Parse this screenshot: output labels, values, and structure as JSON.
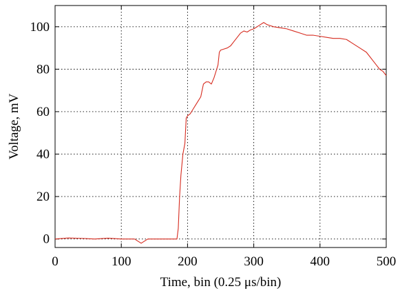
{
  "chart_data": {
    "type": "line",
    "title": "",
    "xlabel": "Time, bin (0.25 μs/bin)",
    "ylabel": "Voltage, mV",
    "xlim": [
      0,
      500
    ],
    "ylim": [
      -4,
      110
    ],
    "grid": true,
    "legend": "none",
    "xticks": [
      0,
      100,
      200,
      300,
      400,
      500
    ],
    "xtick_labels": [
      "0",
      "100",
      "200",
      "300",
      "400",
      "500"
    ],
    "yticks": [
      0,
      20,
      40,
      60,
      80,
      100
    ],
    "ytick_labels": [
      "0",
      "20",
      "40",
      "60",
      "80",
      "100"
    ],
    "series": [
      {
        "color": "#d62a1e",
        "x": [
          0,
          20,
          40,
          60,
          80,
          100,
          120,
          130,
          140,
          160,
          180,
          184,
          186,
          188,
          190,
          193,
          196,
          198,
          200,
          204,
          208,
          212,
          216,
          220,
          224,
          228,
          232,
          236,
          240,
          244,
          246,
          248,
          250,
          255,
          260,
          265,
          270,
          275,
          280,
          285,
          290,
          295,
          300,
          305,
          310,
          315,
          320,
          325,
          330,
          340,
          350,
          360,
          370,
          380,
          390,
          400,
          410,
          420,
          430,
          440,
          450,
          460,
          470,
          475,
          480,
          485,
          490,
          495,
          500
        ],
        "y": [
          0,
          0.5,
          0.3,
          0,
          0.4,
          0,
          0,
          -2,
          0,
          0,
          0,
          0,
          5,
          20,
          30,
          40,
          45,
          57,
          58,
          59,
          61,
          63,
          65,
          67,
          73,
          74,
          74,
          73,
          76,
          80,
          82,
          88,
          89,
          89.5,
          90,
          91,
          93,
          95,
          97,
          98,
          97.5,
          98.5,
          99,
          100,
          101,
          102,
          101,
          100.5,
          100,
          99.5,
          99,
          98,
          97,
          96,
          96,
          95.5,
          95,
          94.5,
          94.5,
          94,
          92,
          90,
          88,
          86,
          84,
          82,
          80,
          79,
          77
        ]
      }
    ]
  }
}
